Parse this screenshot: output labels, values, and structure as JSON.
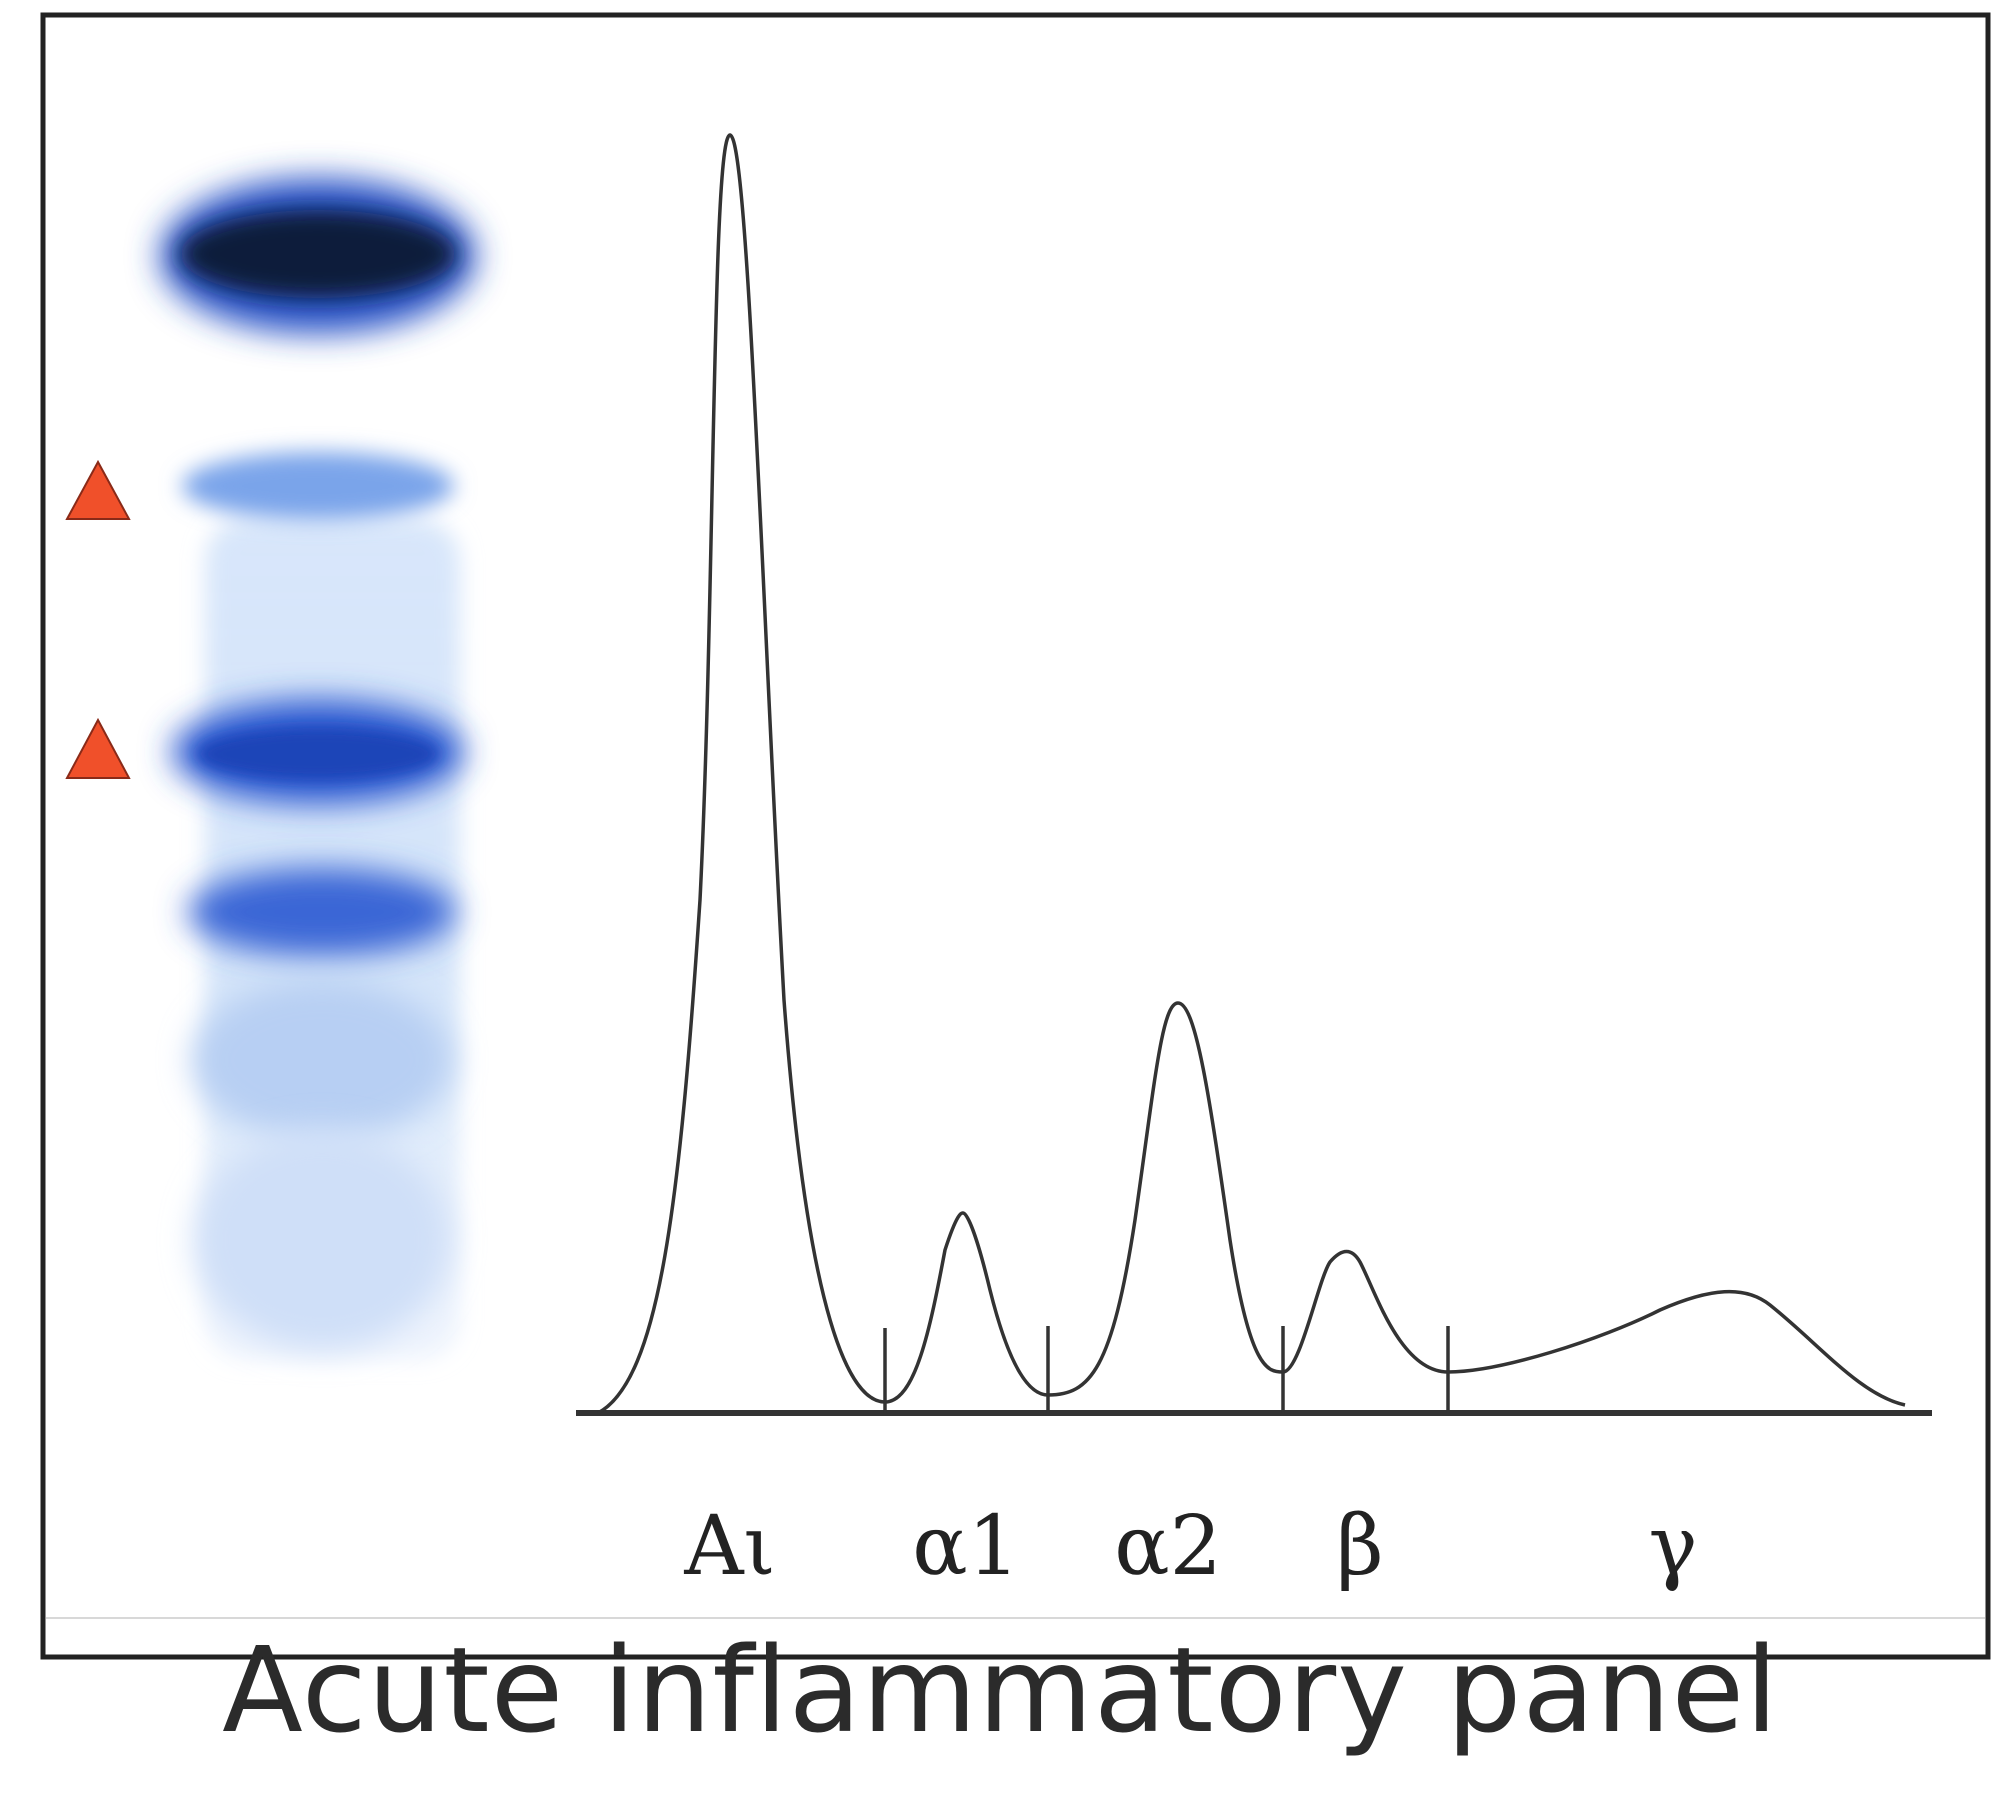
{
  "caption": "Acute inflammatory panel",
  "fraction_labels": [
    {
      "id": "albumin",
      "text": "Aι"
    },
    {
      "id": "alpha1",
      "text": "α1"
    },
    {
      "id": "alpha2",
      "text": "α2"
    },
    {
      "id": "beta",
      "text": "β"
    },
    {
      "id": "gamma",
      "text": "γ"
    }
  ],
  "colors": {
    "frame": "#222222",
    "trace": "#333333",
    "marker": "#f0502a",
    "band_dark": "#101a3a",
    "band_blue": "#2a55c8",
    "band_light": "#c9dcf6"
  },
  "markers": {
    "count": 2,
    "shape": "triangle",
    "marked_bands": [
      "band-2",
      "band-3"
    ]
  }
}
